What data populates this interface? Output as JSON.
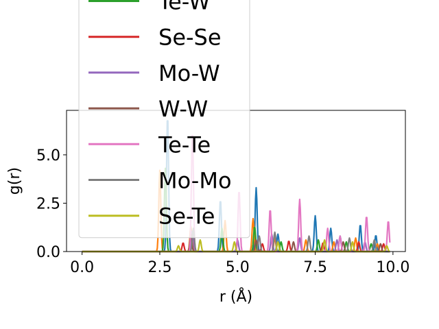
{
  "chart_data": {
    "type": "line",
    "xlabel": "r (Å)",
    "ylabel": "g(r)",
    "xlim": [
      -0.5,
      10.4
    ],
    "ylim": [
      0,
      7.3
    ],
    "xticks": [
      0.0,
      2.5,
      5.0,
      7.5,
      10.0
    ],
    "xtick_labels": [
      "0.0",
      "2.5",
      "5.0",
      "7.5",
      "10.0"
    ],
    "yticks": [
      0.0,
      2.5,
      5.0
    ],
    "ytick_labels": [
      "0.0",
      "2.5",
      "5.0"
    ],
    "grid": false,
    "legend_placement": "upper-left, extending above the axes",
    "series": [
      {
        "color": "#1f77b4",
        "peaks": [
          [
            2.75,
            7.1
          ],
          [
            4.45,
            2.7
          ],
          [
            5.6,
            3.3
          ],
          [
            6.3,
            0.9
          ],
          [
            7.5,
            1.85
          ],
          [
            8.0,
            1.2
          ],
          [
            8.3,
            0.8
          ],
          [
            8.95,
            1.4
          ],
          [
            9.45,
            0.85
          ]
        ]
      },
      {
        "color": "#ff7f0e",
        "peaks": [
          [
            2.5,
            4.2
          ],
          [
            3.5,
            1.3
          ],
          [
            4.6,
            1.6
          ],
          [
            5.5,
            1.7
          ],
          [
            6.2,
            0.7
          ],
          [
            7.2,
            0.6
          ],
          [
            8.1,
            0.5
          ],
          [
            8.8,
            0.7
          ],
          [
            9.5,
            0.4
          ]
        ]
      },
      {
        "name": "Te-W",
        "color": "#2ca02c",
        "peaks": [
          [
            2.68,
            4.3
          ],
          [
            4.5,
            1.2
          ],
          [
            5.55,
            1.3
          ],
          [
            6.4,
            0.5
          ],
          [
            7.6,
            0.6
          ],
          [
            8.5,
            0.5
          ],
          [
            9.3,
            0.4
          ]
        ]
      },
      {
        "name": "Se-Se",
        "color": "#d62728",
        "peaks": [
          [
            3.25,
            0.45
          ],
          [
            5.8,
            0.4
          ],
          [
            6.65,
            0.55
          ],
          [
            7.75,
            0.45
          ],
          [
            8.9,
            0.5
          ],
          [
            9.7,
            0.4
          ]
        ]
      },
      {
        "name": "Mo-W",
        "color": "#9467bd",
        "peaks": [
          [
            3.55,
            1.1
          ],
          [
            5.0,
            0.6
          ],
          [
            6.1,
            0.9
          ],
          [
            7.0,
            0.7
          ],
          [
            8.2,
            0.6
          ],
          [
            9.1,
            0.5
          ]
        ]
      },
      {
        "name": "W-W",
        "color": "#8c564b",
        "peaks": [
          [
            3.5,
            0.9
          ],
          [
            5.6,
            0.6
          ],
          [
            6.8,
            0.5
          ],
          [
            8.4,
            0.5
          ],
          [
            9.6,
            0.4
          ]
        ]
      },
      {
        "name": "Te-Te",
        "color": "#e377c2",
        "peaks": [
          [
            3.55,
            6.3
          ],
          [
            5.05,
            3.2
          ],
          [
            6.05,
            2.2
          ],
          [
            7.0,
            2.7
          ],
          [
            7.9,
            1.2
          ],
          [
            8.3,
            0.8
          ],
          [
            9.15,
            1.85
          ],
          [
            9.85,
            1.6
          ]
        ]
      },
      {
        "name": "Mo-Mo",
        "color": "#7f7f7f",
        "peaks": [
          [
            3.58,
            1.2
          ],
          [
            5.7,
            0.8
          ],
          [
            6.2,
            1.0
          ],
          [
            7.3,
            0.8
          ],
          [
            8.6,
            0.7
          ],
          [
            9.4,
            0.6
          ]
        ]
      },
      {
        "name": "Se-Te",
        "color": "#bcbd22",
        "peaks": [
          [
            3.1,
            0.3
          ],
          [
            3.8,
            0.6
          ],
          [
            4.9,
            0.5
          ],
          [
            6.3,
            0.5
          ],
          [
            7.8,
            0.6
          ],
          [
            8.7,
            0.5
          ],
          [
            9.8,
            0.3
          ]
        ]
      }
    ]
  }
}
